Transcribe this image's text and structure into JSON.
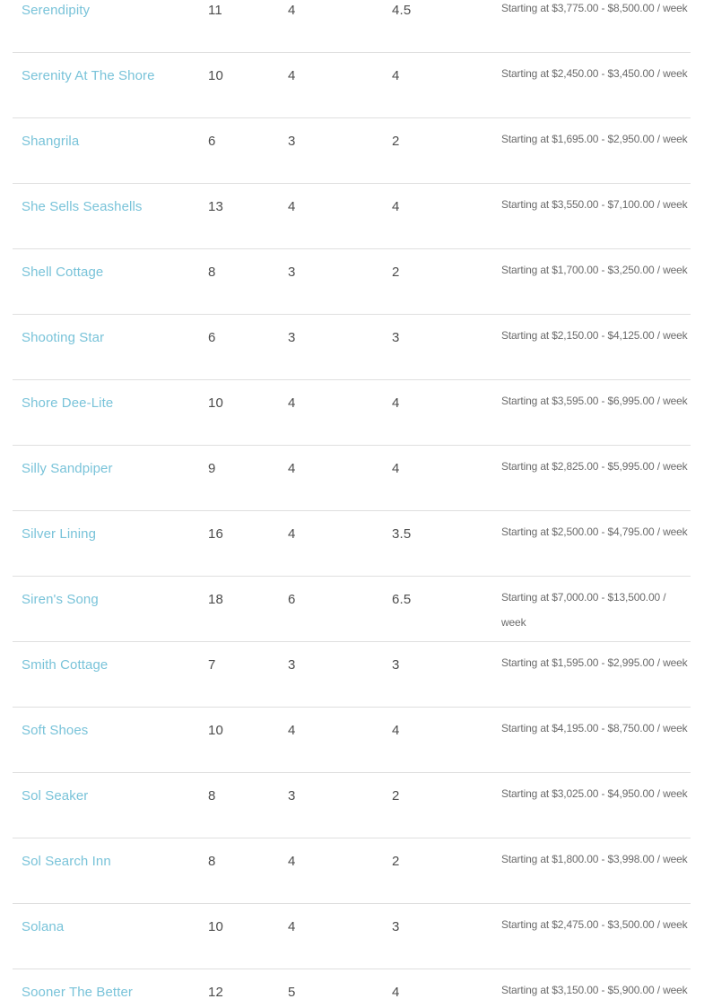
{
  "colors": {
    "link": "#79c3d9",
    "number_text": "#4c4c4c",
    "price_text": "#6b6b6b",
    "row_border": "#dfdfdf",
    "background": "#ffffff"
  },
  "table": {
    "rows": [
      {
        "name": "Serendipity",
        "col2": "11",
        "col3": "4",
        "col4": "4.5",
        "price": "Starting at $3,775.00 - $8,500.00 / week"
      },
      {
        "name": "Serenity At The Shore",
        "col2": "10",
        "col3": "4",
        "col4": "4",
        "price": "Starting at $2,450.00 - $3,450.00 / week"
      },
      {
        "name": "Shangrila",
        "col2": "6",
        "col3": "3",
        "col4": "2",
        "price": "Starting at $1,695.00 - $2,950.00 / week"
      },
      {
        "name": "She Sells Seashells",
        "col2": "13",
        "col3": "4",
        "col4": "4",
        "price": "Starting at $3,550.00 - $7,100.00 / week"
      },
      {
        "name": "Shell Cottage",
        "col2": "8",
        "col3": "3",
        "col4": "2",
        "price": "Starting at $1,700.00 - $3,250.00 / week"
      },
      {
        "name": "Shooting Star",
        "col2": "6",
        "col3": "3",
        "col4": "3",
        "price": "Starting at $2,150.00 - $4,125.00 / week"
      },
      {
        "name": "Shore Dee-Lite",
        "col2": "10",
        "col3": "4",
        "col4": "4",
        "price": "Starting at $3,595.00 - $6,995.00 / week"
      },
      {
        "name": "Silly Sandpiper",
        "col2": "9",
        "col3": "4",
        "col4": "4",
        "price": "Starting at $2,825.00 - $5,995.00 / week"
      },
      {
        "name": "Silver Lining",
        "col2": "16",
        "col3": "4",
        "col4": "3.5",
        "price": "Starting at $2,500.00 - $4,795.00 / week"
      },
      {
        "name": "Siren's Song",
        "col2": "18",
        "col3": "6",
        "col4": "6.5",
        "price": "Starting at $7,000.00 - $13,500.00 / week"
      },
      {
        "name": "Smith Cottage",
        "col2": "7",
        "col3": "3",
        "col4": "3",
        "price": "Starting at $1,595.00 - $2,995.00 / week"
      },
      {
        "name": "Soft Shoes",
        "col2": "10",
        "col3": "4",
        "col4": "4",
        "price": "Starting at $4,195.00 - $8,750.00 / week"
      },
      {
        "name": "Sol Seaker",
        "col2": "8",
        "col3": "3",
        "col4": "2",
        "price": "Starting at $3,025.00 - $4,950.00 / week"
      },
      {
        "name": "Sol Search Inn",
        "col2": "8",
        "col3": "4",
        "col4": "2",
        "price": "Starting at $1,800.00 - $3,998.00 / week"
      },
      {
        "name": "Solana",
        "col2": "10",
        "col3": "4",
        "col4": "3",
        "price": "Starting at $2,475.00 - $3,500.00 / week"
      },
      {
        "name": "Sooner The Better",
        "col2": "12",
        "col3": "5",
        "col4": "4",
        "price": "Starting at $3,150.00 - $5,900.00 / week"
      }
    ]
  }
}
